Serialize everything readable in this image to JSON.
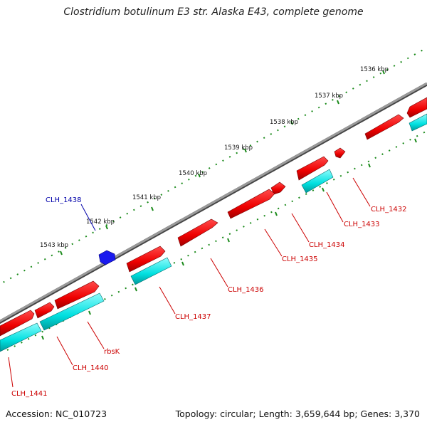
{
  "title": "Clostridium botulinum E3 str. Alaska E43, complete genome",
  "footer": {
    "accession": "Accession: NC_010723",
    "stats": "Topology: circular; Length: 3,659,644 bp; Genes: 3,370"
  },
  "colors": {
    "forward_gene": "#ee0000",
    "reverse_gene": "#00e0e0",
    "other_gene": "#0000dd",
    "backbone": "#888888",
    "tick": "#1a8a1a",
    "label_red": "#cc0000",
    "label_blue": "#0000aa"
  },
  "scale_labels": [
    "1536 kbp",
    "1537 kbp",
    "1538 kbp",
    "1539 kbp",
    "1540 kbp",
    "1541 kbp",
    "1542 kbp",
    "1543 kbp"
  ],
  "gene_labels": [
    "CLH_1432",
    "CLH_1433",
    "CLH_1434",
    "CLH_1435",
    "CLH_1436",
    "CLH_1437",
    "rbsK",
    "CLH_1440",
    "CLH_1441",
    "CLH_1438"
  ]
}
